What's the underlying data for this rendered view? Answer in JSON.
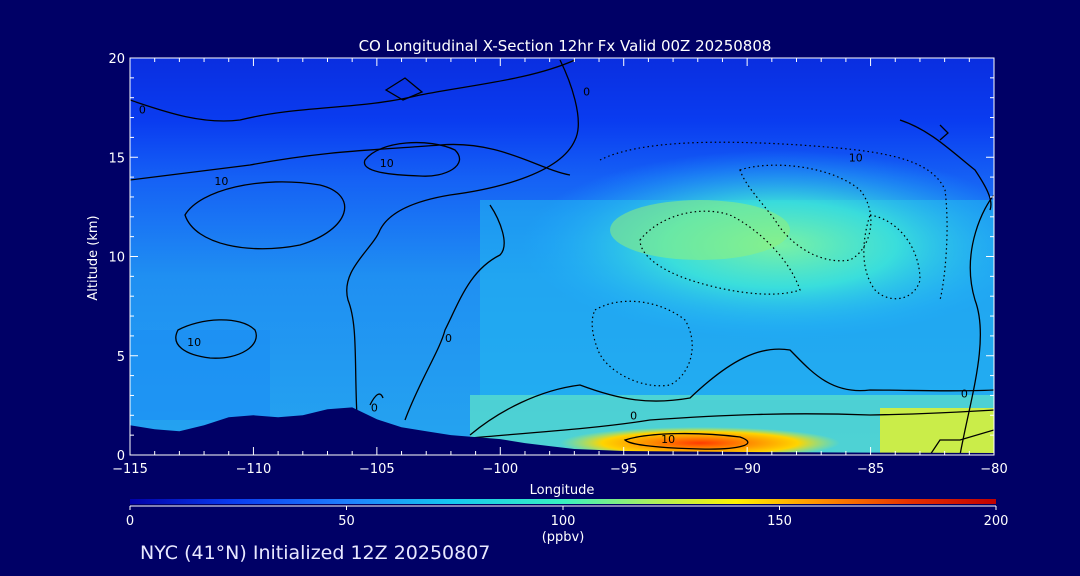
{
  "chart_data": {
    "type": "heatmap",
    "title": "CO Longitudinal X-Section 12hr  Fx Valid 00Z 20250808",
    "xlabel": "Longitude",
    "ylabel": "Altitude (km)",
    "xlim": [
      -115,
      -80
    ],
    "ylim": [
      0,
      20
    ],
    "x_ticks": [
      -115,
      -110,
      -105,
      -100,
      -95,
      -90,
      -85,
      -80
    ],
    "x_tick_labels": [
      "−115",
      "−110",
      "−105",
      "−100",
      "−95",
      "−90",
      "−85",
      "−80"
    ],
    "y_ticks": [
      0,
      5,
      10,
      15,
      20
    ],
    "y_tick_labels": [
      "0",
      "5",
      "10",
      "15",
      "20"
    ],
    "colorbar": {
      "min": 0,
      "max": 200,
      "ticks": [
        0,
        50,
        100,
        150,
        200
      ],
      "tick_labels": [
        "0",
        "50",
        "100",
        "150",
        "200"
      ],
      "unit_label": "(ppbv)"
    },
    "contour_labels": [
      {
        "text": "0",
        "lon": -114.5,
        "alt": 17.4
      },
      {
        "text": "10",
        "lon": -111.3,
        "alt": 13.8
      },
      {
        "text": "10",
        "lon": -104.6,
        "alt": 14.7
      },
      {
        "text": "0",
        "lon": -96.5,
        "alt": 18.3
      },
      {
        "text": "10",
        "lon": -112.4,
        "alt": 5.7
      },
      {
        "text": "0",
        "lon": -102.1,
        "alt": 5.9
      },
      {
        "text": "0",
        "lon": -105.1,
        "alt": 2.4
      },
      {
        "text": "0",
        "lon": -94.6,
        "alt": 2.0
      },
      {
        "text": "10",
        "lon": -93.2,
        "alt": 0.8
      },
      {
        "text": "0",
        "lon": -81.2,
        "alt": 3.1
      },
      {
        "text": "10",
        "lon": -85.6,
        "alt": 15.0
      }
    ],
    "terrain": {
      "lon": [
        -115,
        -114,
        -113,
        -112,
        -111,
        -110,
        -109,
        -108,
        -107,
        -106,
        -105,
        -104,
        -103,
        -102,
        -101,
        -100,
        -99,
        -98,
        -97,
        -96,
        -95,
        -90,
        -85,
        -80
      ],
      "alt": [
        1.5,
        1.3,
        1.2,
        1.5,
        1.9,
        2.0,
        1.9,
        2.0,
        2.3,
        2.4,
        1.8,
        1.4,
        1.2,
        1.0,
        0.9,
        0.8,
        0.6,
        0.45,
        0.3,
        0.25,
        0.2,
        0.15,
        0.12,
        0.1
      ]
    }
  },
  "footer": "NYC (41°N) Initialized 12Z 20250807"
}
